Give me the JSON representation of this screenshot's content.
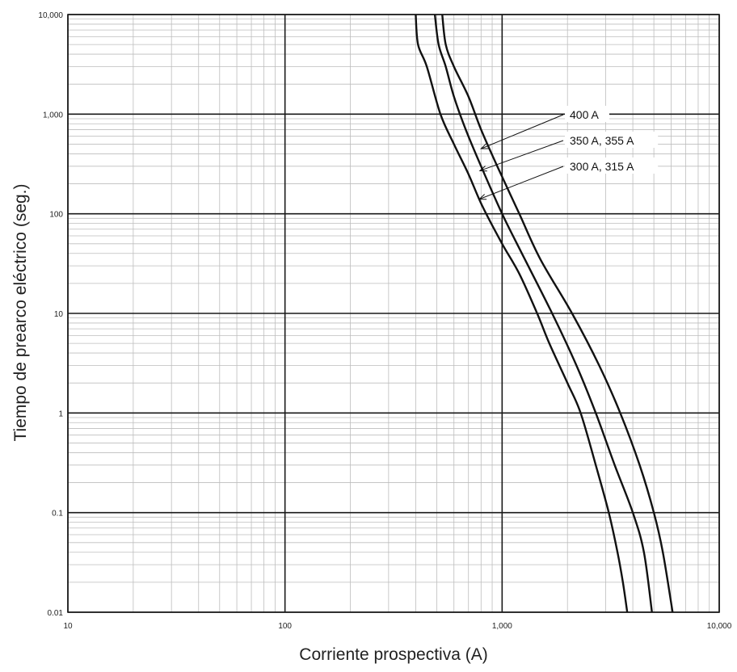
{
  "chart_data": {
    "type": "line",
    "xlabel": "Corriente prospectiva (A)",
    "ylabel": "Tiempo de prearco eléctrico (seg.)",
    "xscale": "log",
    "yscale": "log",
    "xlim": [
      10,
      10000
    ],
    "ylim": [
      0.01,
      10000
    ],
    "grid": true,
    "x_ticks": [
      {
        "value": 10,
        "label": "10"
      },
      {
        "value": 100,
        "label": "100"
      },
      {
        "value": 1000,
        "label": "1,000"
      },
      {
        "value": 10000,
        "label": "10,000"
      }
    ],
    "y_ticks": [
      {
        "value": 0.01,
        "label": "0.01"
      },
      {
        "value": 0.1,
        "label": "0.1"
      },
      {
        "value": 1,
        "label": "1"
      },
      {
        "value": 10,
        "label": "10"
      },
      {
        "value": 100,
        "label": "100"
      },
      {
        "value": 1000,
        "label": "1,000"
      },
      {
        "value": 10000,
        "label": "10,000"
      }
    ],
    "series": [
      {
        "name": "300 A, 315 A",
        "points": [
          [
            400,
            10000
          ],
          [
            410,
            5000
          ],
          [
            450,
            3000
          ],
          [
            520,
            1000
          ],
          [
            600,
            500
          ],
          [
            700,
            250
          ],
          [
            810,
            120
          ],
          [
            1000,
            50
          ],
          [
            1200,
            25
          ],
          [
            1450,
            10
          ],
          [
            1650,
            5
          ],
          [
            2000,
            2
          ],
          [
            2300,
            1
          ],
          [
            2700,
            0.3
          ],
          [
            3100,
            0.1
          ],
          [
            3400,
            0.04
          ],
          [
            3600,
            0.02
          ],
          [
            3770,
            0.01
          ]
        ]
      },
      {
        "name": "350 A, 355 A",
        "points": [
          [
            490,
            10000
          ],
          [
            510,
            5000
          ],
          [
            550,
            3000
          ],
          [
            600,
            1500
          ],
          [
            680,
            700
          ],
          [
            800,
            300
          ],
          [
            1000,
            100
          ],
          [
            1200,
            45
          ],
          [
            1700,
            10
          ],
          [
            2200,
            3
          ],
          [
            2700,
            1
          ],
          [
            3300,
            0.3
          ],
          [
            4000,
            0.1
          ],
          [
            4500,
            0.04
          ],
          [
            4900,
            0.01
          ]
        ]
      },
      {
        "name": "400 A",
        "points": [
          [
            530,
            10000
          ],
          [
            550,
            5000
          ],
          [
            600,
            3000
          ],
          [
            700,
            1500
          ],
          [
            800,
            700
          ],
          [
            950,
            300
          ],
          [
            1200,
            100
          ],
          [
            1500,
            35
          ],
          [
            2100,
            10
          ],
          [
            2800,
            3
          ],
          [
            3500,
            1
          ],
          [
            4300,
            0.3
          ],
          [
            5000,
            0.1
          ],
          [
            5500,
            0.04
          ],
          [
            6100,
            0.01
          ]
        ]
      }
    ],
    "annotations": [
      {
        "text": "400 A",
        "series": "400 A",
        "arrow_to": [
          800,
          450
        ]
      },
      {
        "text": "350 A, 355 A",
        "series": "350 A, 355 A",
        "arrow_to": [
          790,
          270
        ]
      },
      {
        "text": "300 A, 315 A",
        "series": "300 A, 315 A",
        "arrow_to": [
          785,
          140
        ]
      }
    ]
  }
}
